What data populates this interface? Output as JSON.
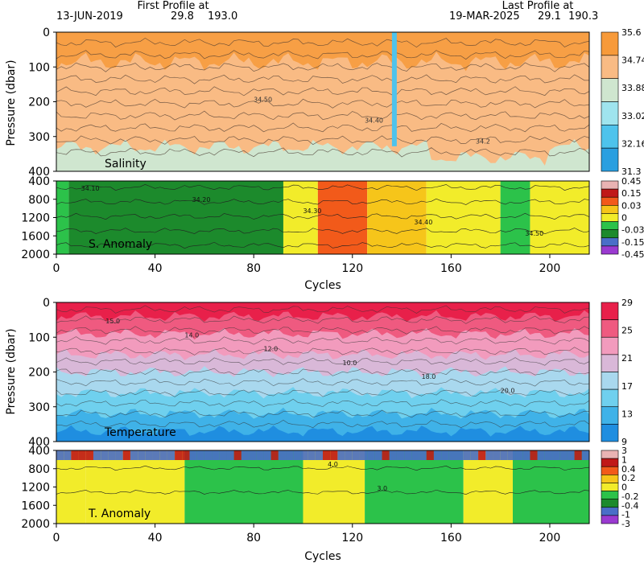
{
  "header": {
    "first_title": "First Profile at",
    "first_date": "13-JUN-2019",
    "first_lat": "29.8",
    "first_lon": "193.0",
    "last_title": "Last Profile at",
    "last_date": "19-MAR-2025",
    "last_lat": "29.1",
    "last_lon": "190.3"
  },
  "chart_data": [
    {
      "type": "heatmap",
      "panel": "salinity",
      "title": "Salinity",
      "ylabel": "Pressure (dbar)",
      "xlim": [
        0,
        216
      ],
      "ylim": [
        400,
        0
      ],
      "yticks": [
        0,
        100,
        200,
        300,
        400
      ],
      "xticks": [
        0,
        40,
        80,
        120,
        160,
        200
      ],
      "colorbar": {
        "labels": [
          "35.6",
          "34.74",
          "33.88",
          "33.02",
          "32.16",
          "31.3"
        ],
        "colors": [
          "#f79a3a",
          "#f9bb84",
          "#cfe6cf",
          "#9fe4ee",
          "#4ec3ec",
          "#2a9fe0"
        ]
      },
      "contour_labels": [
        "34.50",
        "34.40",
        "34.2"
      ],
      "gap_cycle": 137
    },
    {
      "type": "heatmap",
      "panel": "salinity_anomaly",
      "title": "S. Anomaly",
      "ylim": [
        2000,
        400
      ],
      "yticks": [
        400,
        800,
        1200,
        1600,
        2000
      ],
      "xticks": [
        0,
        40,
        80,
        120,
        160,
        200
      ],
      "xlabel": "Cycles",
      "colorbar": {
        "labels": [
          "0.45",
          "0.15",
          "0.03",
          "0",
          "-0.03",
          "-0.15",
          "-0.45"
        ],
        "colors": [
          "#e9b3b3",
          "#c01818",
          "#f25a1a",
          "#f6c51a",
          "#f2ec2a",
          "#2cc24a",
          "#1c8a2c",
          "#4a6ec8",
          "#9a3ad0"
        ]
      },
      "contour_labels": [
        "34.10",
        "34.20",
        "34.30",
        "34.40",
        "34.50"
      ],
      "anomaly_segments": [
        {
          "from": 0,
          "to": 5,
          "level": "-0.03"
        },
        {
          "from": 5,
          "to": 92,
          "level": "-0.15"
        },
        {
          "from": 92,
          "to": 106,
          "level": "0"
        },
        {
          "from": 106,
          "to": 126,
          "level": "0.15"
        },
        {
          "from": 126,
          "to": 150,
          "level": "0.03"
        },
        {
          "from": 150,
          "to": 180,
          "level": "0"
        },
        {
          "from": 180,
          "to": 192,
          "level": "-0.03"
        },
        {
          "from": 192,
          "to": 216,
          "level": "0"
        }
      ]
    },
    {
      "type": "heatmap",
      "panel": "temperature",
      "title": "Temperature",
      "ylabel": "Pressure (dbar)",
      "xlim": [
        0,
        216
      ],
      "ylim": [
        400,
        0
      ],
      "yticks": [
        0,
        100,
        200,
        300,
        400
      ],
      "xticks": [
        0,
        40,
        80,
        120,
        160,
        200
      ],
      "colorbar": {
        "labels": [
          "29",
          "25",
          "21",
          "17",
          "13",
          "9"
        ],
        "colors": [
          "#e8204a",
          "#ef5a80",
          "#f29bbd",
          "#d9b8d8",
          "#a9d8ee",
          "#6fd0ee",
          "#3fb2e8",
          "#1f8ee0"
        ]
      },
      "contour_labels": [
        "15.0",
        "14.0",
        "12.0",
        "10.0",
        "18.0",
        "20.0"
      ]
    },
    {
      "type": "heatmap",
      "panel": "temperature_anomaly",
      "title": "T. Anomaly",
      "ylim": [
        2000,
        400
      ],
      "yticks": [
        400,
        800,
        1200,
        1600,
        2000
      ],
      "xticks": [
        0,
        40,
        80,
        120,
        160,
        200
      ],
      "xlabel": "Cycles",
      "colorbar": {
        "labels": [
          "3",
          "1",
          "0.4",
          "0.2",
          "0",
          "-0.2",
          "-0.4",
          "-1",
          "-3"
        ],
        "colors": [
          "#e9b3b3",
          "#c01818",
          "#f25a1a",
          "#f6c51a",
          "#f2ec2a",
          "#2cc24a",
          "#1c8a2c",
          "#4a6ec8",
          "#9a3ad0"
        ]
      },
      "contour_labels": [
        "4.0",
        "3.0"
      ],
      "anomaly_segments": [
        {
          "from": 0,
          "to": 12,
          "level": "0"
        },
        {
          "from": 12,
          "to": 52,
          "level": "0"
        },
        {
          "from": 52,
          "to": 100,
          "level": "-0.2"
        },
        {
          "from": 100,
          "to": 125,
          "level": "0"
        },
        {
          "from": 125,
          "to": 165,
          "level": "-0.2"
        },
        {
          "from": 165,
          "to": 185,
          "level": "0"
        },
        {
          "from": 185,
          "to": 216,
          "level": "-0.2"
        }
      ]
    }
  ]
}
